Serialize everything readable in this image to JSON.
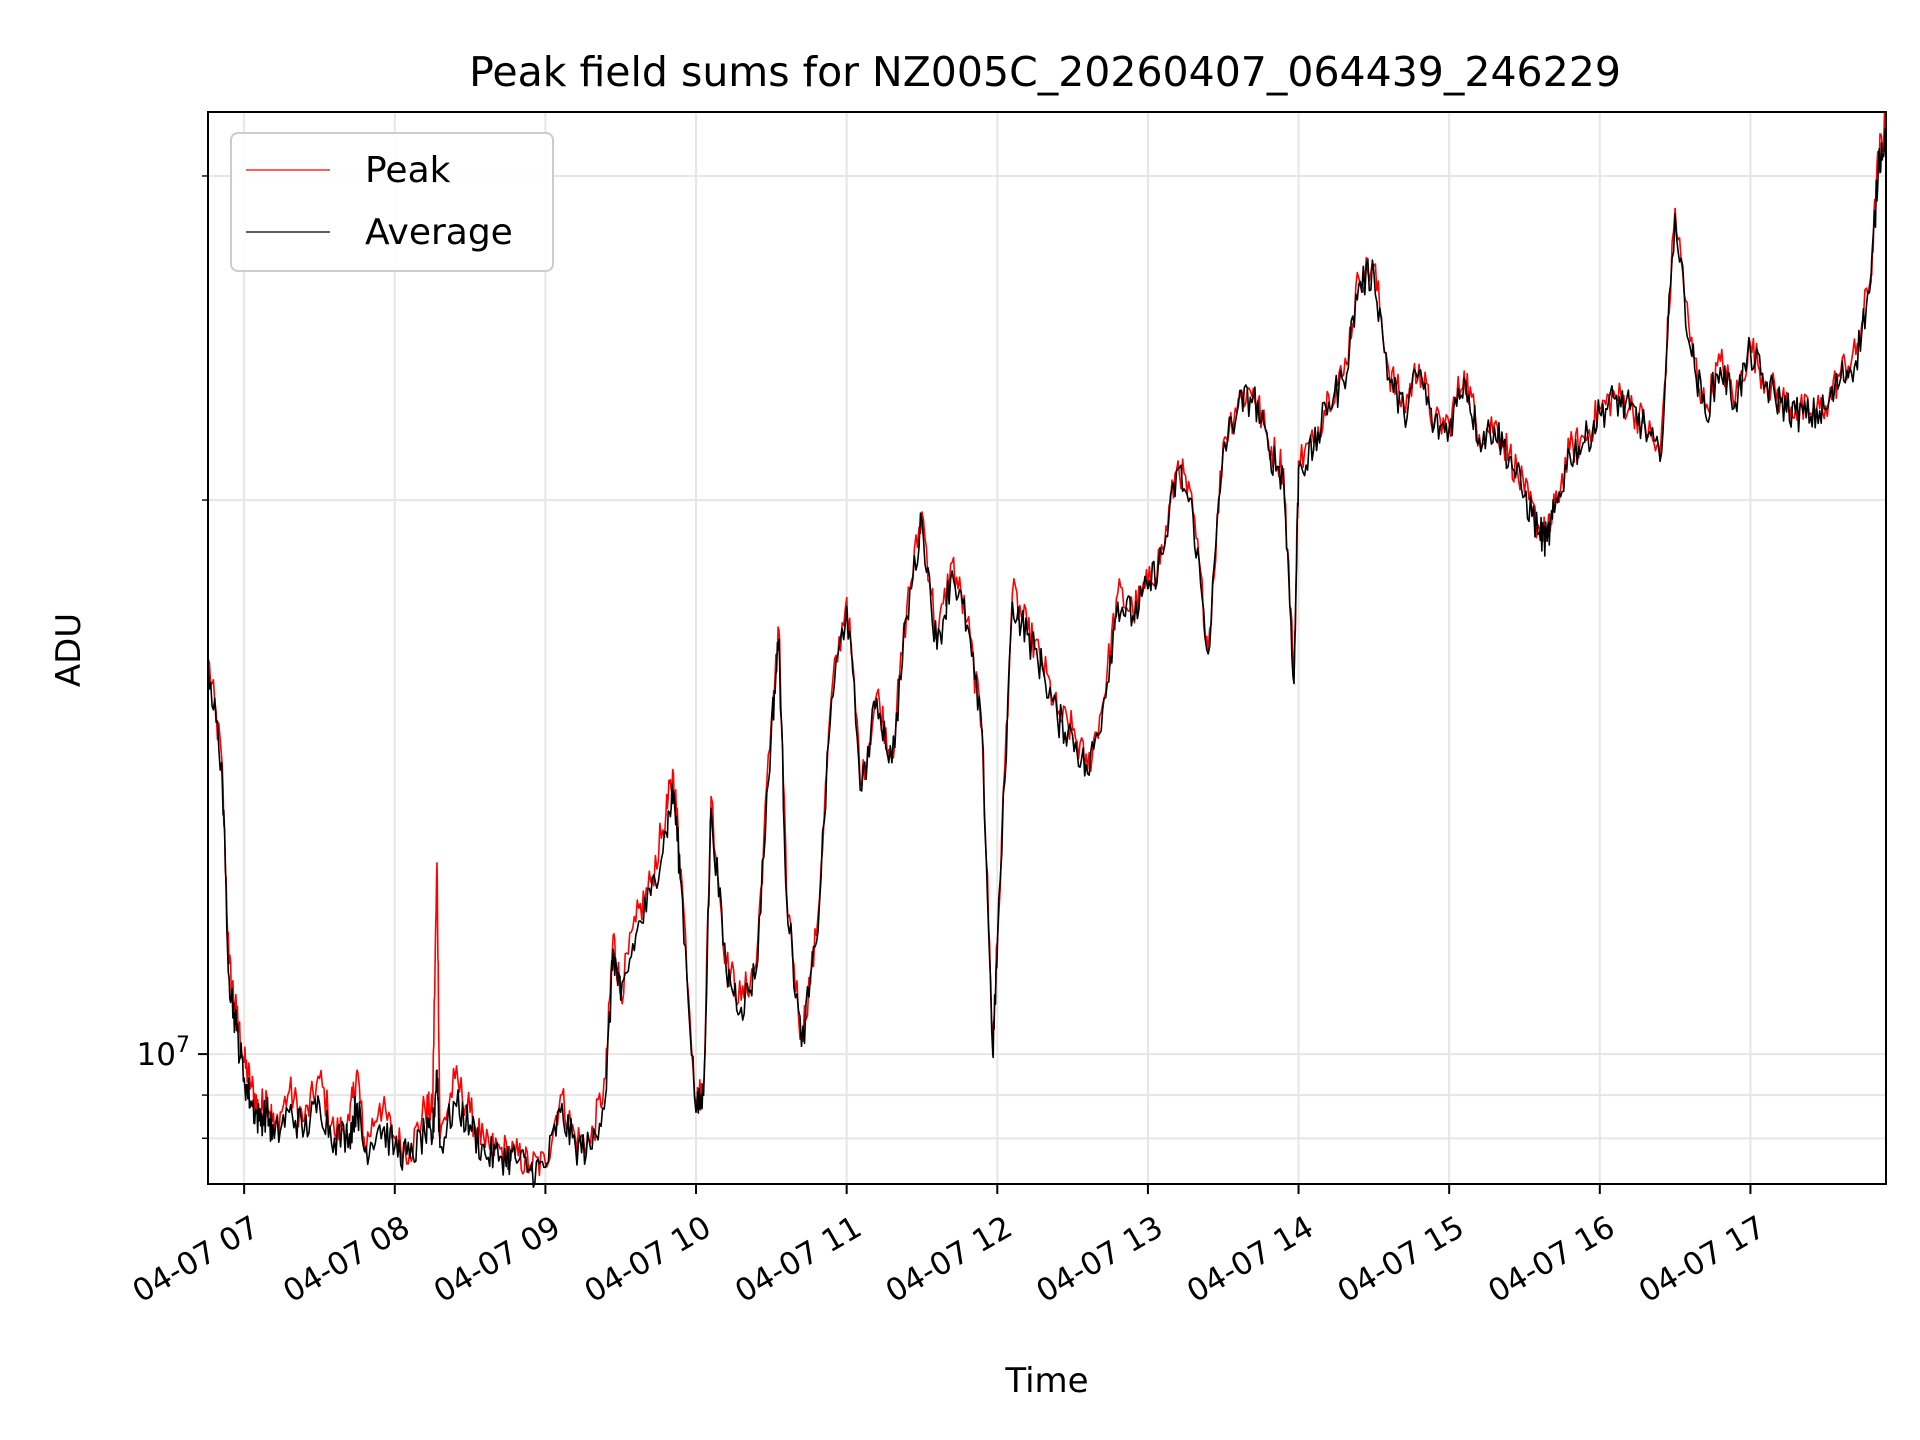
{
  "chart_data": {
    "type": "line",
    "title": "Peak field sums for NZ005C_20260407_064439_246229",
    "xlabel": "Time",
    "ylabel": "ADU",
    "yscale": "log",
    "ylim": [
      8500000,
      32500000
    ],
    "xlim": [
      6.76,
      17.9
    ],
    "x_unit": "hour of 2026-04-07",
    "grid": true,
    "legend_position": "upper-left",
    "x_ticks": [
      {
        "value": 7,
        "label": "04-07 07"
      },
      {
        "value": 8,
        "label": "04-07 08"
      },
      {
        "value": 9,
        "label": "04-07 09"
      },
      {
        "value": 10,
        "label": "04-07 10"
      },
      {
        "value": 11,
        "label": "04-07 11"
      },
      {
        "value": 12,
        "label": "04-07 12"
      },
      {
        "value": 13,
        "label": "04-07 13"
      },
      {
        "value": 14,
        "label": "04-07 14"
      },
      {
        "value": 15,
        "label": "04-07 15"
      },
      {
        "value": 16,
        "label": "04-07 16"
      },
      {
        "value": 17,
        "label": "04-07 17"
      }
    ],
    "y_major_ticks": [
      {
        "value": 10000000,
        "base": "10",
        "exp": "7"
      }
    ],
    "y_minor_ticks": [
      9000000,
      9500000,
      20000000,
      30000000
    ],
    "series": [
      {
        "name": "Peak",
        "color": "#ff0000",
        "x": [
          6.76,
          6.85,
          6.9,
          6.95,
          7.0,
          7.05,
          7.1,
          7.15,
          7.2,
          7.3,
          7.4,
          7.5,
          7.6,
          7.7,
          7.75,
          7.8,
          7.9,
          8.0,
          8.1,
          8.2,
          8.25,
          8.28,
          8.3,
          8.4,
          8.5,
          8.6,
          8.7,
          8.8,
          8.9,
          9.0,
          9.1,
          9.2,
          9.3,
          9.4,
          9.45,
          9.5,
          9.6,
          9.7,
          9.8,
          9.85,
          9.9,
          10.0,
          10.05,
          10.1,
          10.2,
          10.3,
          10.4,
          10.5,
          10.55,
          10.6,
          10.7,
          10.8,
          10.9,
          11.0,
          11.1,
          11.2,
          11.3,
          11.4,
          11.5,
          11.6,
          11.7,
          11.8,
          11.9,
          11.97,
          12.0,
          12.1,
          12.2,
          12.3,
          12.4,
          12.5,
          12.6,
          12.7,
          12.8,
          12.9,
          13.0,
          13.1,
          13.2,
          13.3,
          13.4,
          13.5,
          13.6,
          13.7,
          13.8,
          13.9,
          13.97,
          14.0,
          14.1,
          14.2,
          14.3,
          14.4,
          14.5,
          14.6,
          14.7,
          14.8,
          14.9,
          15.0,
          15.1,
          15.2,
          15.3,
          15.4,
          15.5,
          15.6,
          15.65,
          15.7,
          15.8,
          15.9,
          16.0,
          16.1,
          16.2,
          16.3,
          16.4,
          16.5,
          16.6,
          16.7,
          16.8,
          16.9,
          17.0,
          17.1,
          17.2,
          17.3,
          17.4,
          17.5,
          17.6,
          17.7,
          17.8,
          17.85,
          17.9
        ],
        "values": [
          16400000,
          14500000,
          11200000,
          10500000,
          9900000,
          9600000,
          9300000,
          9500000,
          9100000,
          9550000,
          9200000,
          9700000,
          9050000,
          9200000,
          9800000,
          8900000,
          9400000,
          9000000,
          8850000,
          9350000,
          9300000,
          12700000,
          9000000,
          9700000,
          9300000,
          8900000,
          8880000,
          8820000,
          8700000,
          8720000,
          9500000,
          9000000,
          8950000,
          9700000,
          11600000,
          10800000,
          11800000,
          12400000,
          13500000,
          14200000,
          12600000,
          9400000,
          9600000,
          13800000,
          11200000,
          10700000,
          11200000,
          15200000,
          17000000,
          12300000,
          10200000,
          11600000,
          15700000,
          17700000,
          14000000,
          15700000,
          14500000,
          17500000,
          19700000,
          16800000,
          18500000,
          17200000,
          15000000,
          10100000,
          11500000,
          17800000,
          17000000,
          16300000,
          15300000,
          15000000,
          14300000,
          15500000,
          17800000,
          17400000,
          18000000,
          18800000,
          21000000,
          19700000,
          16600000,
          21500000,
          22700000,
          23000000,
          21500000,
          20800000,
          16000000,
          21000000,
          21500000,
          22800000,
          23400000,
          26400000,
          26800000,
          23500000,
          22500000,
          23700000,
          22000000,
          22000000,
          23500000,
          21700000,
          22000000,
          21200000,
          20200000,
          19300000,
          19100000,
          19800000,
          21300000,
          21600000,
          22400000,
          22800000,
          22500000,
          22000000,
          21100000,
          28800000,
          24400000,
          22400000,
          23800000,
          22700000,
          24300000,
          23200000,
          22700000,
          22400000,
          22300000,
          22500000,
          23500000,
          24000000,
          26500000,
          30800000,
          32000000
        ]
      },
      {
        "name": "Average",
        "color": "#000000",
        "x": [
          6.76,
          6.85,
          6.9,
          6.95,
          7.0,
          7.05,
          7.1,
          7.15,
          7.2,
          7.3,
          7.4,
          7.5,
          7.6,
          7.7,
          7.75,
          7.8,
          7.9,
          8.0,
          8.1,
          8.2,
          8.25,
          8.28,
          8.3,
          8.4,
          8.5,
          8.6,
          8.7,
          8.8,
          8.9,
          9.0,
          9.1,
          9.2,
          9.3,
          9.4,
          9.45,
          9.5,
          9.6,
          9.7,
          9.8,
          9.85,
          9.9,
          10.0,
          10.05,
          10.1,
          10.2,
          10.3,
          10.4,
          10.5,
          10.55,
          10.6,
          10.7,
          10.8,
          10.9,
          11.0,
          11.1,
          11.2,
          11.3,
          11.4,
          11.5,
          11.6,
          11.7,
          11.8,
          11.9,
          11.97,
          12.0,
          12.1,
          12.2,
          12.3,
          12.4,
          12.5,
          12.6,
          12.7,
          12.8,
          12.9,
          13.0,
          13.1,
          13.2,
          13.3,
          13.4,
          13.5,
          13.6,
          13.7,
          13.8,
          13.9,
          13.97,
          14.0,
          14.1,
          14.2,
          14.3,
          14.4,
          14.5,
          14.6,
          14.7,
          14.8,
          14.9,
          15.0,
          15.1,
          15.2,
          15.3,
          15.4,
          15.5,
          15.6,
          15.65,
          15.7,
          15.8,
          15.9,
          16.0,
          16.1,
          16.2,
          16.3,
          16.4,
          16.5,
          16.6,
          16.7,
          16.8,
          16.9,
          17.0,
          17.1,
          17.2,
          17.3,
          17.4,
          17.5,
          17.6,
          17.7,
          17.8,
          17.85,
          17.9
        ],
        "values": [
          16300000,
          14400000,
          11000000,
          10300000,
          9700000,
          9400000,
          9200000,
          9300000,
          9000000,
          9300000,
          9100000,
          9400000,
          9000000,
          9050000,
          9400000,
          8850000,
          9150000,
          8900000,
          8780000,
          9050000,
          9000000,
          9800000,
          8900000,
          9400000,
          9150000,
          8820000,
          8800000,
          8780000,
          8650000,
          8680000,
          9300000,
          8900000,
          8880000,
          9500000,
          11400000,
          10700000,
          11600000,
          12200000,
          13200000,
          13900000,
          12400000,
          9300000,
          9500000,
          13600000,
          11100000,
          10600000,
          11100000,
          15000000,
          16800000,
          12200000,
          10100000,
          11500000,
          15600000,
          17500000,
          13900000,
          15600000,
          14400000,
          17300000,
          19500000,
          16600000,
          18300000,
          17100000,
          14900000,
          10000000,
          11400000,
          17600000,
          16900000,
          16200000,
          15200000,
          14900000,
          14200000,
          15400000,
          17600000,
          17300000,
          17900000,
          18700000,
          20800000,
          19600000,
          16500000,
          21300000,
          22500000,
          22800000,
          21300000,
          20600000,
          15900000,
          20800000,
          21300000,
          22600000,
          23200000,
          26200000,
          26600000,
          23300000,
          22300000,
          23500000,
          21900000,
          21900000,
          23300000,
          21600000,
          21900000,
          21100000,
          20100000,
          19200000,
          19000000,
          19700000,
          21200000,
          21500000,
          22300000,
          22700000,
          22400000,
          21900000,
          21000000,
          28600000,
          24200000,
          22300000,
          23600000,
          22600000,
          24100000,
          23100000,
          22600000,
          22300000,
          22200000,
          22400000,
          23300000,
          23800000,
          26300000,
          30500000,
          31700000
        ]
      }
    ]
  }
}
